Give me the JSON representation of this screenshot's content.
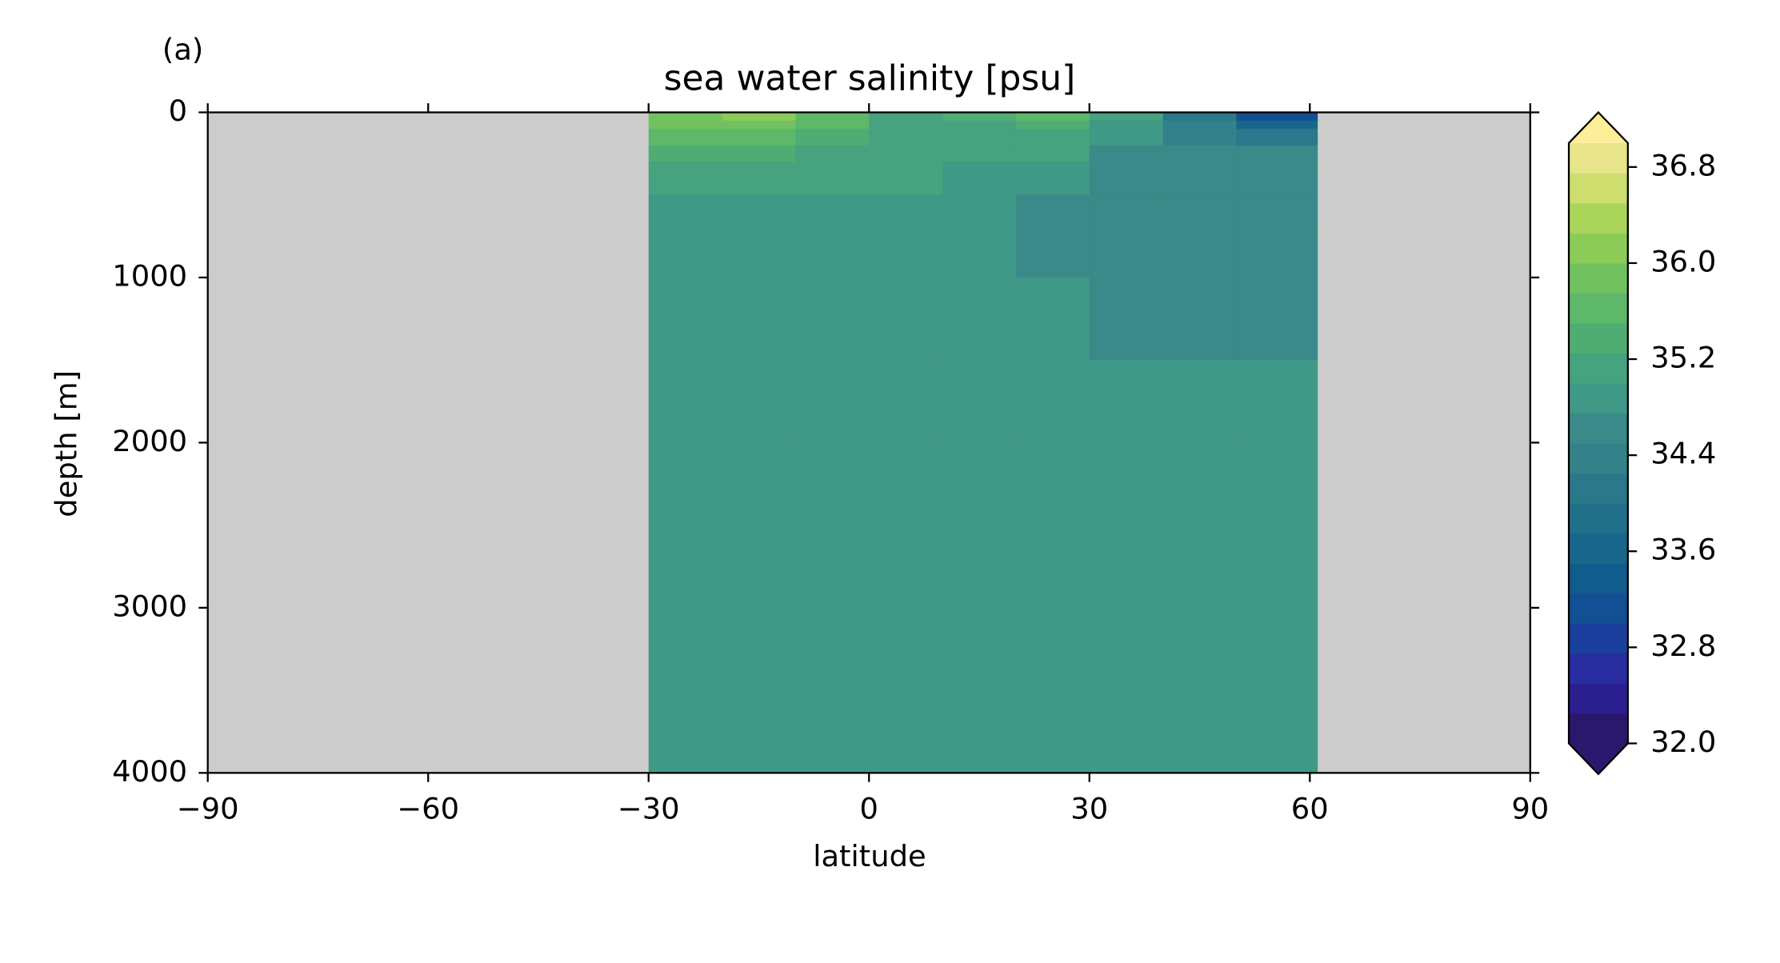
{
  "chart_data": {
    "type": "contour",
    "panel_label": "(a)",
    "title": "sea water salinity [psu]",
    "xlabel": "latitude",
    "ylabel": "depth [m]",
    "xlim": [
      -90,
      90
    ],
    "xticks": [
      {
        "value": -90,
        "label": "−90"
      },
      {
        "value": -60,
        "label": "−60"
      },
      {
        "value": -30,
        "label": "−30"
      },
      0,
      30,
      60,
      90
    ],
    "ylim": [
      4000,
      0
    ],
    "yticks": [
      0,
      1000,
      2000,
      3000,
      4000
    ],
    "land_color": "#cccccc",
    "x_edges": [
      -30,
      -20,
      -10,
      0,
      10,
      20,
      30,
      40,
      50,
      61
    ],
    "depth_edges": [
      0,
      50,
      100,
      200,
      300,
      500,
      700,
      1000,
      1500,
      2000,
      4000
    ],
    "z": [
      [
        35.9,
        36.0,
        35.6,
        35.1,
        35.3,
        35.6,
        35.0,
        34.2,
        33.1
      ],
      [
        35.9,
        35.9,
        35.5,
        35.1,
        35.2,
        35.4,
        34.9,
        34.3,
        33.6
      ],
      [
        35.6,
        35.6,
        35.3,
        35.1,
        35.1,
        35.2,
        34.9,
        34.4,
        34.2
      ],
      [
        35.3,
        35.3,
        35.2,
        35.1,
        35.0,
        35.0,
        34.6,
        34.6,
        34.6
      ],
      [
        35.1,
        35.1,
        35.0,
        35.0,
        34.9,
        34.9,
        34.6,
        34.6,
        34.6
      ],
      [
        34.9,
        34.9,
        34.8,
        34.8,
        34.8,
        34.6,
        34.6,
        34.6,
        34.6
      ],
      [
        34.8,
        34.8,
        34.8,
        34.8,
        34.8,
        34.6,
        34.6,
        34.6,
        34.6
      ],
      [
        34.8,
        34.8,
        34.8,
        34.8,
        34.8,
        34.8,
        34.6,
        34.6,
        34.6
      ],
      [
        34.8,
        34.8,
        34.8,
        34.8,
        34.8,
        34.8,
        34.8,
        34.8,
        34.8
      ],
      [
        34.8,
        34.8,
        34.8,
        34.8,
        34.8,
        34.8,
        34.8,
        34.8,
        34.8
      ]
    ],
    "levels": [
      32.0,
      32.25,
      32.5,
      32.75,
      33.0,
      33.25,
      33.5,
      33.75,
      34.0,
      34.25,
      34.5,
      34.75,
      35.0,
      35.25,
      35.5,
      35.75,
      36.0,
      36.25,
      36.5,
      36.75,
      37.0
    ],
    "colors": [
      "#2a186c",
      "#2b1f8f",
      "#2a2d9f",
      "#1a3f9d",
      "#124f93",
      "#115b8d",
      "#19668b",
      "#226f8a",
      "#2b788a",
      "#33828a",
      "#398a88",
      "#409886",
      "#46a27f",
      "#4fad74",
      "#5db86a",
      "#72c161",
      "#8ccb57",
      "#aad55a",
      "#cddd6e",
      "#e7e48a"
    ],
    "extend": "both",
    "under_color": "#2a186c",
    "over_color": "#fdee99",
    "cbar_ticks": [
      {
        "value": 32,
        "label": "32.0"
      },
      32.8,
      33.6,
      34.4,
      35.2,
      {
        "value": 36,
        "label": "36.0"
      },
      36.8
    ]
  }
}
